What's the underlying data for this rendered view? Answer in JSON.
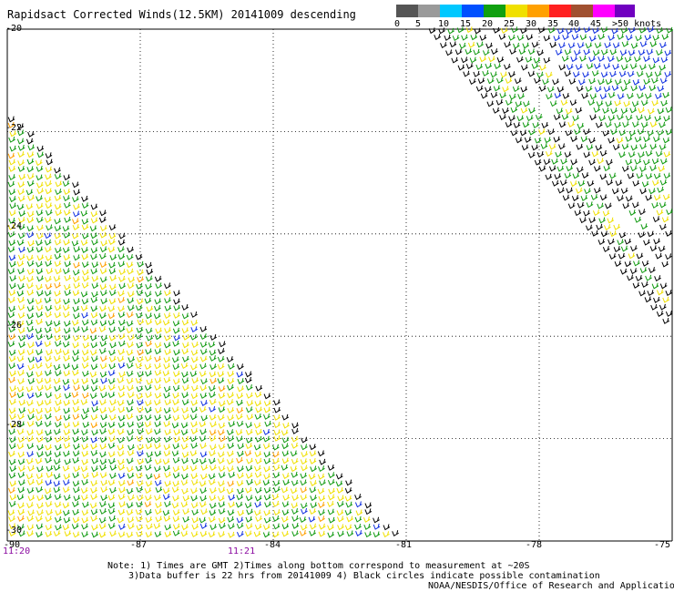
{
  "title": "Rapidsact Corrected Winds(12.5KM) 20141009 descending",
  "colorbar": {
    "ticks": [
      "0",
      "5",
      "10",
      "15",
      "20",
      "25",
      "30",
      "35",
      "40",
      "45",
      ">50 knots"
    ],
    "colors": [
      "#555555",
      "#9a9a9a",
      "#00c8ff",
      "#0050ff",
      "#10a010",
      "#f0e000",
      "#ffa000",
      "#ff2020",
      "#a05030",
      "#ff00ff",
      "#7000c0"
    ]
  },
  "axes": {
    "lat_ticks": [
      "-20",
      "-22",
      "-24",
      "-26",
      "-28",
      "-30"
    ],
    "lon_ticks": [
      "-90",
      "-87",
      "-84",
      "-81",
      "-78",
      "-75"
    ],
    "time_ticks": [
      "11:20",
      "11:21"
    ],
    "lat_range": [
      -30,
      -20
    ],
    "lon_range": [
      -90,
      -75
    ],
    "grid": "dotted"
  },
  "swaths": [
    {
      "name": "west",
      "dominant_colors": [
        "yellow",
        "green"
      ],
      "edge_color": "black"
    },
    {
      "name": "east",
      "dominant_colors": [
        "green",
        "blue",
        "yellow"
      ],
      "edge_color": "black"
    }
  ],
  "notes": {
    "line1": "Note: 1) Times are GMT 2)Times along bottom correspond to measurement at ~20S",
    "line2": "3)Data buffer is 22 hrs from 20141009 4) Black circles indicate possible contamination",
    "credit": "NOAA/NESDIS/Office of Research and Applications"
  }
}
